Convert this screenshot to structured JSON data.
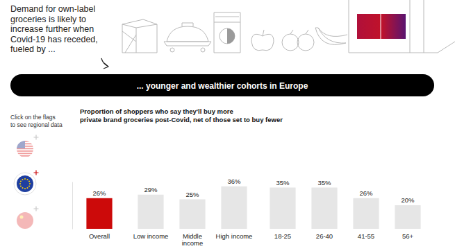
{
  "intro": "Demand for own-label\ngroceries is likely to\nincrease further when\nCovid-19 has receded,\nfueled by ...",
  "banner": "... younger and wealthier cohorts in Europe",
  "flag_hint": "Click on the flags\nto see regional data",
  "chart_data": {
    "type": "bar",
    "title": "Proportion of shoppers who say they'll buy more\nprivate brand groceries post-Covid, net of those set to buy fewer",
    "categories": [
      "Overall",
      "Low income",
      "Middle income",
      "High income",
      "18-25",
      "26-40",
      "41-55",
      "56+"
    ],
    "values": [
      26,
      29,
      25,
      36,
      35,
      35,
      26,
      20
    ],
    "value_labels": [
      "26%",
      "29%",
      "25%",
      "36%",
      "35%",
      "35%",
      "26%",
      "20%"
    ],
    "colors": [
      "#cc0a0a",
      "#e6e6e6",
      "#e6e6e6",
      "#e6e6e6",
      "#e6e6e6",
      "#e6e6e6",
      "#e6e6e6",
      "#e6e6e6"
    ],
    "ylim": [
      0,
      40
    ],
    "data_labels": true,
    "tick_labels": "x",
    "grid": false
  }
}
